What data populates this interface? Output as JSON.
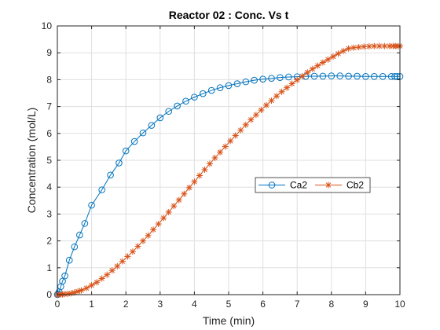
{
  "chart_data": {
    "type": "line",
    "title": "Reactor 02 : Conc. Vs t",
    "xlabel": "Time (min)",
    "ylabel": "Concentration (mol/L)",
    "xlim": [
      0,
      10
    ],
    "ylim": [
      0,
      10
    ],
    "xticks": [
      "0",
      "1",
      "2",
      "3",
      "4",
      "5",
      "6",
      "7",
      "8",
      "9",
      "10"
    ],
    "yticks": [
      "0",
      "1",
      "2",
      "3",
      "4",
      "5",
      "6",
      "7",
      "8",
      "9",
      "10"
    ],
    "grid": true,
    "legend_position": "center-right",
    "series": [
      {
        "name": "Ca2",
        "color": "#0072BD",
        "marker": "circle",
        "x": [
          0,
          0.02,
          0.05,
          0.1,
          0.15,
          0.22,
          0.35,
          0.5,
          0.65,
          0.8,
          1.0,
          1.3,
          1.55,
          1.8,
          2.0,
          2.25,
          2.5,
          2.75,
          3.0,
          3.25,
          3.5,
          3.75,
          4.0,
          4.25,
          4.5,
          4.75,
          5.0,
          5.25,
          5.5,
          5.75,
          6.0,
          6.25,
          6.5,
          6.75,
          7.0,
          7.25,
          7.5,
          7.75,
          8.0,
          8.25,
          8.5,
          8.75,
          9.0,
          9.25,
          9.5,
          9.75,
          9.85,
          9.92,
          10.0
        ],
        "values": [
          0,
          0.03,
          0.1,
          0.3,
          0.5,
          0.7,
          1.28,
          1.78,
          2.22,
          2.65,
          3.33,
          3.9,
          4.45,
          4.9,
          5.35,
          5.7,
          6.02,
          6.3,
          6.58,
          6.82,
          7.02,
          7.2,
          7.35,
          7.48,
          7.6,
          7.7,
          7.78,
          7.85,
          7.92,
          7.98,
          8.02,
          8.05,
          8.08,
          8.1,
          8.11,
          8.12,
          8.13,
          8.13,
          8.14,
          8.14,
          8.13,
          8.13,
          8.12,
          8.12,
          8.12,
          8.12,
          8.12,
          8.12,
          8.12
        ]
      },
      {
        "name": "Cb2",
        "color": "#D95319",
        "marker": "star",
        "x": [
          0,
          0.05,
          0.1,
          0.15,
          0.2,
          0.3,
          0.4,
          0.5,
          0.6,
          0.7,
          0.85,
          1.0,
          1.15,
          1.3,
          1.45,
          1.6,
          1.75,
          1.9,
          2.05,
          2.2,
          2.35,
          2.5,
          2.65,
          2.8,
          2.95,
          3.1,
          3.25,
          3.4,
          3.55,
          3.7,
          3.85,
          4.0,
          4.15,
          4.3,
          4.45,
          4.6,
          4.75,
          4.9,
          5.05,
          5.2,
          5.35,
          5.5,
          5.65,
          5.8,
          5.95,
          6.1,
          6.25,
          6.4,
          6.55,
          6.7,
          6.85,
          7.0,
          7.15,
          7.3,
          7.45,
          7.6,
          7.75,
          7.9,
          8.05,
          8.2,
          8.35,
          8.5,
          8.65,
          8.8,
          8.95,
          9.1,
          9.25,
          9.4,
          9.55,
          9.7,
          9.8,
          9.88,
          9.95,
          10.0
        ],
        "values": [
          0,
          0.0,
          0.01,
          0.01,
          0.02,
          0.03,
          0.05,
          0.08,
          0.12,
          0.16,
          0.24,
          0.35,
          0.46,
          0.6,
          0.74,
          0.9,
          1.06,
          1.24,
          1.42,
          1.6,
          1.8,
          2.0,
          2.2,
          2.42,
          2.63,
          2.85,
          3.07,
          3.3,
          3.52,
          3.75,
          3.98,
          4.2,
          4.43,
          4.65,
          4.87,
          5.09,
          5.3,
          5.51,
          5.72,
          5.92,
          6.12,
          6.32,
          6.51,
          6.69,
          6.87,
          7.05,
          7.22,
          7.39,
          7.55,
          7.7,
          7.85,
          7.99,
          8.13,
          8.27,
          8.4,
          8.52,
          8.64,
          8.75,
          8.86,
          8.97,
          9.07,
          9.16,
          9.19,
          9.21,
          9.23,
          9.24,
          9.25,
          9.25,
          9.25,
          9.25,
          9.25,
          9.25,
          9.25,
          9.25
        ]
      }
    ]
  }
}
